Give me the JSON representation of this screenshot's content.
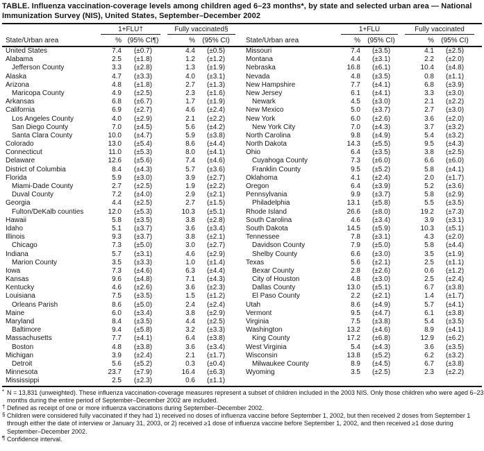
{
  "title": "TABLE. Influenza vaccination-coverage levels among children aged 6–23 months*, by state and selected urban area — National Immunization Survey (NIS), United States, September–December 2002",
  "columns": {
    "state": "State/Urban area",
    "pct": "%",
    "flu_annotated": "1+FLU†",
    "flu": "1+FLU",
    "fully_annotated": "Fully vaccinated§",
    "fully": "Fully vaccinated",
    "ci_annotated": "(95% CI¶)",
    "ci": "(95% CI)"
  },
  "table": {
    "left_rows": [
      {
        "area": "United States",
        "indent": false,
        "flu_pct": "7.4",
        "flu_ci": "(±0.7)",
        "fv_pct": "4.4",
        "fv_ci": "(±0.5)"
      },
      {
        "area": "Alabama",
        "indent": false,
        "flu_pct": "2.5",
        "flu_ci": "(±1.8)",
        "fv_pct": "1.2",
        "fv_ci": "(±1.2)"
      },
      {
        "area": "Jefferson County",
        "indent": true,
        "flu_pct": "3.3",
        "flu_ci": "(±2.8)",
        "fv_pct": "1.3",
        "fv_ci": "(±1.9)"
      },
      {
        "area": "Alaska",
        "indent": false,
        "flu_pct": "4.7",
        "flu_ci": "(±3.3)",
        "fv_pct": "4.0",
        "fv_ci": "(±3.1)"
      },
      {
        "area": "Arizona",
        "indent": false,
        "flu_pct": "4.8",
        "flu_ci": "(±1.8)",
        "fv_pct": "2.7",
        "fv_ci": "(±1.3)"
      },
      {
        "area": "Maricopa County",
        "indent": true,
        "flu_pct": "4.9",
        "flu_ci": "(±2.5)",
        "fv_pct": "2.3",
        "fv_ci": "(±1.6)"
      },
      {
        "area": "Arkansas",
        "indent": false,
        "flu_pct": "6.8",
        "flu_ci": "(±6.7)",
        "fv_pct": "1.7",
        "fv_ci": "(±1.9)"
      },
      {
        "area": "California",
        "indent": false,
        "flu_pct": "6.9",
        "flu_ci": "(±2.7)",
        "fv_pct": "4.6",
        "fv_ci": "(±2.4)"
      },
      {
        "area": "Los Angeles County",
        "indent": true,
        "flu_pct": "4.0",
        "flu_ci": "(±2.9)",
        "fv_pct": "2.1",
        "fv_ci": "(±2.2)"
      },
      {
        "area": "San Diego County",
        "indent": true,
        "flu_pct": "7.0",
        "flu_ci": "(±4.5)",
        "fv_pct": "5.6",
        "fv_ci": "(±4.2)"
      },
      {
        "area": "Santa Clara County",
        "indent": true,
        "flu_pct": "10.0",
        "flu_ci": "(±4.7)",
        "fv_pct": "5.9",
        "fv_ci": "(±3.8)"
      },
      {
        "area": "Colorado",
        "indent": false,
        "flu_pct": "13.0",
        "flu_ci": "(±5.4)",
        "fv_pct": "8.6",
        "fv_ci": "(±4.4)"
      },
      {
        "area": "Connecticut",
        "indent": false,
        "flu_pct": "11.0",
        "flu_ci": "(±5.3)",
        "fv_pct": "8.0",
        "fv_ci": "(±4.1)"
      },
      {
        "area": "Delaware",
        "indent": false,
        "flu_pct": "12.6",
        "flu_ci": "(±5.6)",
        "fv_pct": "7.4",
        "fv_ci": "(±4.6)"
      },
      {
        "area": "District of Columbia",
        "indent": false,
        "flu_pct": "8.4",
        "flu_ci": "(±4.3)",
        "fv_pct": "5.7",
        "fv_ci": "(±3.6)"
      },
      {
        "area": "Florida",
        "indent": false,
        "flu_pct": "5.9",
        "flu_ci": "(±3.0)",
        "fv_pct": "3.9",
        "fv_ci": "(±2.7)"
      },
      {
        "area": "Miami-Dade County",
        "indent": true,
        "flu_pct": "2.7",
        "flu_ci": "(±2.5)",
        "fv_pct": "1.9",
        "fv_ci": "(±2.2)"
      },
      {
        "area": "Duval County",
        "indent": true,
        "flu_pct": "7.2",
        "flu_ci": "(±4.0)",
        "fv_pct": "2.9",
        "fv_ci": "(±2.1)"
      },
      {
        "area": "Georgia",
        "indent": false,
        "flu_pct": "4.4",
        "flu_ci": "(±2.5)",
        "fv_pct": "2.7",
        "fv_ci": "(±1.5)"
      },
      {
        "area": "Fulton/DeKalb counties",
        "indent": true,
        "flu_pct": "12.0",
        "flu_ci": "(±5.3)",
        "fv_pct": "10.3",
        "fv_ci": "(±5.1)"
      },
      {
        "area": "Hawaii",
        "indent": false,
        "flu_pct": "5.8",
        "flu_ci": "(±3.5)",
        "fv_pct": "3.8",
        "fv_ci": "(±2.8)"
      },
      {
        "area": "Idaho",
        "indent": false,
        "flu_pct": "5.1",
        "flu_ci": "(±3.7)",
        "fv_pct": "3.6",
        "fv_ci": "(±3.4)"
      },
      {
        "area": "Illinois",
        "indent": false,
        "flu_pct": "9.3",
        "flu_ci": "(±3.7)",
        "fv_pct": "3.8",
        "fv_ci": "(±2.1)"
      },
      {
        "area": "Chicago",
        "indent": true,
        "flu_pct": "7.3",
        "flu_ci": "(±5.0)",
        "fv_pct": "3.0",
        "fv_ci": "(±2.7)"
      },
      {
        "area": "Indiana",
        "indent": false,
        "flu_pct": "5.7",
        "flu_ci": "(±3.1)",
        "fv_pct": "4.6",
        "fv_ci": "(±2.9)"
      },
      {
        "area": "Marion County",
        "indent": true,
        "flu_pct": "3.5",
        "flu_ci": "(±3.3)",
        "fv_pct": "1.0",
        "fv_ci": "(±1.4)"
      },
      {
        "area": "Iowa",
        "indent": false,
        "flu_pct": "7.3",
        "flu_ci": "(±4.6)",
        "fv_pct": "6.3",
        "fv_ci": "(±4.4)"
      },
      {
        "area": "Kansas",
        "indent": false,
        "flu_pct": "9.6",
        "flu_ci": "(±4.8)",
        "fv_pct": "7.1",
        "fv_ci": "(±4.3)"
      },
      {
        "area": "Kentucky",
        "indent": false,
        "flu_pct": "4.6",
        "flu_ci": "(±2.6)",
        "fv_pct": "3.6",
        "fv_ci": "(±2.3)"
      },
      {
        "area": "Louisiana",
        "indent": false,
        "flu_pct": "7.5",
        "flu_ci": "(±3.5)",
        "fv_pct": "1.5",
        "fv_ci": "(±1.2)"
      },
      {
        "area": "Orleans Parish",
        "indent": true,
        "flu_pct": "8.6",
        "flu_ci": "(±5.0)",
        "fv_pct": "2.4",
        "fv_ci": "(±2.4)"
      },
      {
        "area": "Maine",
        "indent": false,
        "flu_pct": "6.0",
        "flu_ci": "(±3.4)",
        "fv_pct": "3.8",
        "fv_ci": "(±2.9)"
      },
      {
        "area": "Maryland",
        "indent": false,
        "flu_pct": "8.4",
        "flu_ci": "(±3.5)",
        "fv_pct": "4.4",
        "fv_ci": "(±2.5)"
      },
      {
        "area": "Baltimore",
        "indent": true,
        "flu_pct": "9.4",
        "flu_ci": "(±5.8)",
        "fv_pct": "3.2",
        "fv_ci": "(±3.3)"
      },
      {
        "area": "Massachusetts",
        "indent": false,
        "flu_pct": "7.7",
        "flu_ci": "(±4.1)",
        "fv_pct": "6.4",
        "fv_ci": "(±3.8)"
      },
      {
        "area": "Boston",
        "indent": true,
        "flu_pct": "4.8",
        "flu_ci": "(±3.8)",
        "fv_pct": "3.6",
        "fv_ci": "(±3.4)"
      },
      {
        "area": "Michigan",
        "indent": false,
        "flu_pct": "3.9",
        "flu_ci": "(±2.4)",
        "fv_pct": "2.1",
        "fv_ci": "(±1.7)"
      },
      {
        "area": "Detroit",
        "indent": true,
        "flu_pct": "5.6",
        "flu_ci": "(±5.2)",
        "fv_pct": "0.3",
        "fv_ci": "(±0.4)"
      },
      {
        "area": "Minnesota",
        "indent": false,
        "flu_pct": "23.7",
        "flu_ci": "(±7.9)",
        "fv_pct": "16.4",
        "fv_ci": "(±6.3)"
      },
      {
        "area": "Mississippi",
        "indent": false,
        "flu_pct": "2.5",
        "flu_ci": "(±2.3)",
        "fv_pct": "0.6",
        "fv_ci": "(±1.1)"
      }
    ],
    "right_rows": [
      {
        "area": "Missouri",
        "indent": false,
        "flu_pct": "7.4",
        "flu_ci": "(±3.5)",
        "fv_pct": "4.1",
        "fv_ci": "(±2.5)"
      },
      {
        "area": "Montana",
        "indent": false,
        "flu_pct": "4.4",
        "flu_ci": "(±3.1)",
        "fv_pct": "2.2",
        "fv_ci": "(±2.0)"
      },
      {
        "area": "Nebraska",
        "indent": false,
        "flu_pct": "16.8",
        "flu_ci": "(±6.1)",
        "fv_pct": "10.4",
        "fv_ci": "(±4.8)"
      },
      {
        "area": "Nevada",
        "indent": false,
        "flu_pct": "4.8",
        "flu_ci": "(±3.5)",
        "fv_pct": "0.8",
        "fv_ci": "(±1.1)"
      },
      {
        "area": "New Hampshire",
        "indent": false,
        "flu_pct": "7.7",
        "flu_ci": "(±4.1)",
        "fv_pct": "6.8",
        "fv_ci": "(±3.9)"
      },
      {
        "area": "New Jersey",
        "indent": false,
        "flu_pct": "6.1",
        "flu_ci": "(±4.1)",
        "fv_pct": "3.3",
        "fv_ci": "(±3.0)"
      },
      {
        "area": "Newark",
        "indent": true,
        "flu_pct": "4.5",
        "flu_ci": "(±3.0)",
        "fv_pct": "2.1",
        "fv_ci": "(±2.2)"
      },
      {
        "area": "New Mexico",
        "indent": false,
        "flu_pct": "5.0",
        "flu_ci": "(±3.7)",
        "fv_pct": "2.7",
        "fv_ci": "(±3.0)"
      },
      {
        "area": "New York",
        "indent": false,
        "flu_pct": "6.0",
        "flu_ci": "(±2.6)",
        "fv_pct": "3.6",
        "fv_ci": "(±2.0)"
      },
      {
        "area": "New York City",
        "indent": true,
        "flu_pct": "7.0",
        "flu_ci": "(±4.3)",
        "fv_pct": "3.7",
        "fv_ci": "(±3.2)"
      },
      {
        "area": "North Carolina",
        "indent": false,
        "flu_pct": "9.8",
        "flu_ci": "(±4.9)",
        "fv_pct": "5.4",
        "fv_ci": "(±3.2)"
      },
      {
        "area": "North Dakota",
        "indent": false,
        "flu_pct": "14.3",
        "flu_ci": "(±5.5)",
        "fv_pct": "9.5",
        "fv_ci": "(±4.3)"
      },
      {
        "area": "Ohio",
        "indent": false,
        "flu_pct": "6.4",
        "flu_ci": "(±3.5)",
        "fv_pct": "3.8",
        "fv_ci": "(±2.5)"
      },
      {
        "area": "Cuyahoga County",
        "indent": true,
        "flu_pct": "7.3",
        "flu_ci": "(±6.0)",
        "fv_pct": "6.6",
        "fv_ci": "(±6.0)"
      },
      {
        "area": "Franklin County",
        "indent": true,
        "flu_pct": "9.5",
        "flu_ci": "(±5.2)",
        "fv_pct": "5.8",
        "fv_ci": "(±4.1)"
      },
      {
        "area": "Oklahoma",
        "indent": false,
        "flu_pct": "4.1",
        "flu_ci": "(±2.4)",
        "fv_pct": "2.0",
        "fv_ci": "(±1.7)"
      },
      {
        "area": "Oregon",
        "indent": false,
        "flu_pct": "6.4",
        "flu_ci": "(±3.9)",
        "fv_pct": "5.2",
        "fv_ci": "(±3.6)"
      },
      {
        "area": "Pennsylvania",
        "indent": false,
        "flu_pct": "9.9",
        "flu_ci": "(±3.7)",
        "fv_pct": "5.8",
        "fv_ci": "(±2.9)"
      },
      {
        "area": "Philadelphia",
        "indent": true,
        "flu_pct": "13.1",
        "flu_ci": "(±5.8)",
        "fv_pct": "5.5",
        "fv_ci": "(±3.5)"
      },
      {
        "area": "Rhode Island",
        "indent": false,
        "flu_pct": "26.6",
        "flu_ci": "(±8.0)",
        "fv_pct": "19.2",
        "fv_ci": "(±7.3)"
      },
      {
        "area": "South Carolina",
        "indent": false,
        "flu_pct": "4.6",
        "flu_ci": "(±3.4)",
        "fv_pct": "3.9",
        "fv_ci": "(±3.1)"
      },
      {
        "area": "South Dakota",
        "indent": false,
        "flu_pct": "14.5",
        "flu_ci": "(±5.9)",
        "fv_pct": "10.3",
        "fv_ci": "(±5.1)"
      },
      {
        "area": "Tennessee",
        "indent": false,
        "flu_pct": "7.8",
        "flu_ci": "(±3.1)",
        "fv_pct": "4.3",
        "fv_ci": "(±2.0)"
      },
      {
        "area": "Davidson County",
        "indent": true,
        "flu_pct": "7.9",
        "flu_ci": "(±5.0)",
        "fv_pct": "5.8",
        "fv_ci": "(±4.4)"
      },
      {
        "area": "Shelby County",
        "indent": true,
        "flu_pct": "6.6",
        "flu_ci": "(±3.0)",
        "fv_pct": "3.5",
        "fv_ci": "(±1.9)"
      },
      {
        "area": "Texas",
        "indent": false,
        "flu_pct": "5.6",
        "flu_ci": "(±2.1)",
        "fv_pct": "2.5",
        "fv_ci": "(±1.1)"
      },
      {
        "area": "Bexar County",
        "indent": true,
        "flu_pct": "2.8",
        "flu_ci": "(±2.6)",
        "fv_pct": "0.6",
        "fv_ci": "(±1.2)"
      },
      {
        "area": "City of Houston",
        "indent": true,
        "flu_pct": "4.8",
        "flu_ci": "(±3.0)",
        "fv_pct": "2.5",
        "fv_ci": "(±2.4)"
      },
      {
        "area": "Dallas County",
        "indent": true,
        "flu_pct": "13.0",
        "flu_ci": "(±5.1)",
        "fv_pct": "6.7",
        "fv_ci": "(±3.8)"
      },
      {
        "area": "El Paso County",
        "indent": true,
        "flu_pct": "2.2",
        "flu_ci": "(±2.1)",
        "fv_pct": "1.4",
        "fv_ci": "(±1.7)"
      },
      {
        "area": "Utah",
        "indent": false,
        "flu_pct": "8.6",
        "flu_ci": "(±4.9)",
        "fv_pct": "5.7",
        "fv_ci": "(±4.1)"
      },
      {
        "area": "Vermont",
        "indent": false,
        "flu_pct": "9.5",
        "flu_ci": "(±4.7)",
        "fv_pct": "6.1",
        "fv_ci": "(±3.8)"
      },
      {
        "area": "Virginia",
        "indent": false,
        "flu_pct": "7.5",
        "flu_ci": "(±3.8)",
        "fv_pct": "5.4",
        "fv_ci": "(±3.5)"
      },
      {
        "area": "Washington",
        "indent": false,
        "flu_pct": "13.2",
        "flu_ci": "(±4.6)",
        "fv_pct": "8.9",
        "fv_ci": "(±4.1)"
      },
      {
        "area": "King County",
        "indent": true,
        "flu_pct": "17.2",
        "flu_ci": "(±6.8)",
        "fv_pct": "12.9",
        "fv_ci": "(±6.2)"
      },
      {
        "area": "West Virginia",
        "indent": false,
        "flu_pct": "5.4",
        "flu_ci": "(±4.3)",
        "fv_pct": "3.6",
        "fv_ci": "(±3.5)"
      },
      {
        "area": "Wisconsin",
        "indent": false,
        "flu_pct": "13.8",
        "flu_ci": "(±5.2)",
        "fv_pct": "6.2",
        "fv_ci": "(±3.2)"
      },
      {
        "area": "Milwaukee County",
        "indent": true,
        "flu_pct": "8.9",
        "flu_ci": "(±4.5)",
        "fv_pct": "6.7",
        "fv_ci": "(±3.8)"
      },
      {
        "area": "Wyoming",
        "indent": false,
        "flu_pct": "3.5",
        "flu_ci": "(±2.5)",
        "fv_pct": "2.3",
        "fv_ci": "(±2.2)"
      }
    ]
  },
  "footnotes": [
    {
      "marker": "*",
      "text": "N = 13,831 (unweighted). These influenza vaccination-coverage measures represent a subset of children included in the 2003 NIS. Only those children who were aged 6–23 months during the entire period of September–December 2002 are included."
    },
    {
      "marker": "†",
      "text": "Defined as receipt of one or more influenza vaccinations during September–December 2002."
    },
    {
      "marker": "§",
      "text": "Children were considered fully vaccinated if they had 1) received no doses of influenza vaccine before September 1, 2002, but then received 2 doses from September 1 through either the date of interview or January 31, 2003, or 2) received ≥1 dose of influenza vaccine before September 1, 2002, and then received ≥1 dose during September–December 2002."
    },
    {
      "marker": "¶",
      "text": "Confidence interval."
    }
  ]
}
